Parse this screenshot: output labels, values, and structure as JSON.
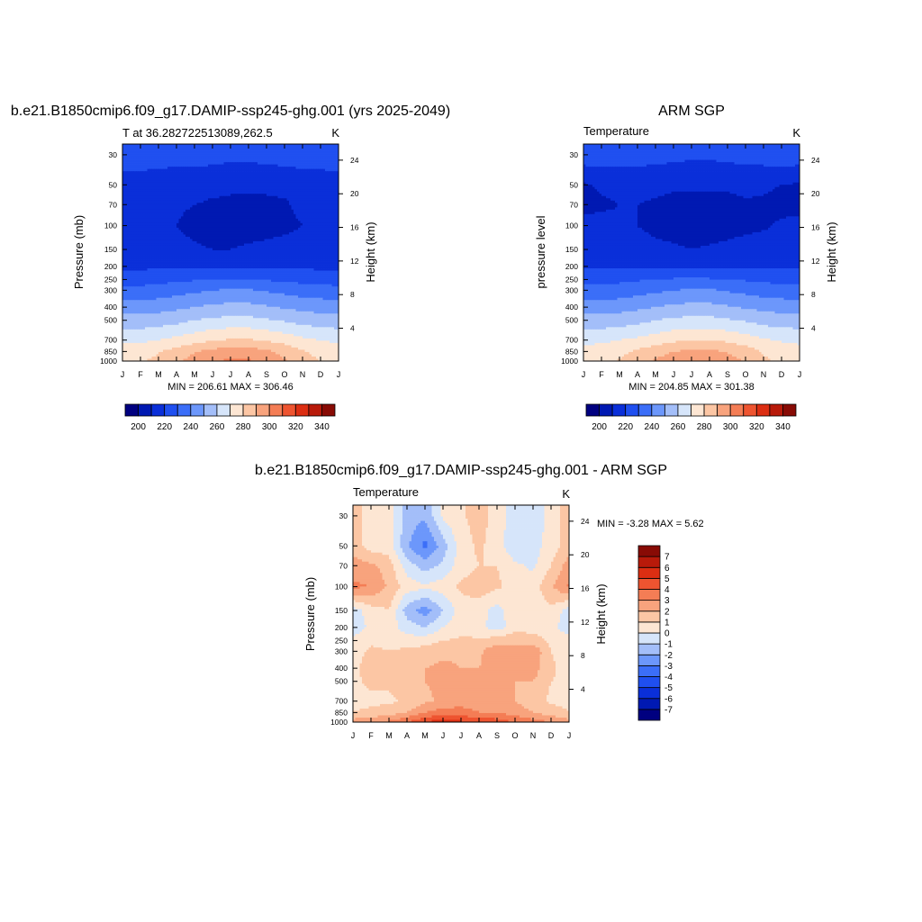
{
  "chart_data": [
    {
      "type": "heatmap",
      "title": "b.e21.B1850cmip6.f09_g17.DAMIP-ssp245-ghg.001 (yrs 2025-2049)",
      "left_label": "T at 36.282722513089,262.5",
      "right_label": "K",
      "ylabel": "Pressure (mb)",
      "ylabel_right": "Height (km)",
      "x_ticks": [
        "J",
        "F",
        "M",
        "A",
        "M",
        "J",
        "J",
        "A",
        "S",
        "O",
        "N",
        "D",
        "J"
      ],
      "y_ticks": [
        30,
        50,
        70,
        100,
        150,
        200,
        250,
        300,
        400,
        500,
        700,
        850,
        1000
      ],
      "y_ticks_right": [
        4,
        8,
        12,
        16,
        20,
        24
      ],
      "y_scale": "log",
      "ylim": [
        1000,
        25
      ],
      "minmax_text": "MIN = 206.61 MAX = 306.46",
      "colorbar": {
        "orientation": "horizontal",
        "ticks": [
          200,
          220,
          240,
          260,
          280,
          300,
          320,
          340
        ],
        "levels": [
          190,
          200,
          210,
          220,
          230,
          240,
          250,
          260,
          270,
          280,
          290,
          300,
          310,
          320,
          330,
          340,
          350
        ],
        "colors": [
          "#000080",
          "#0019b2",
          "#0a2fd9",
          "#1f4ff0",
          "#3b6ef8",
          "#6c97fb",
          "#a3bef9",
          "#d6e5fa",
          "#fde6d3",
          "#fcc6a4",
          "#f8a37d",
          "#f47d55",
          "#ee5430",
          "#dc2e12",
          "#b81a0a",
          "#880b05"
        ]
      },
      "series": [
        {
          "pressure": 30,
          "values": [
            226,
            226,
            225,
            225,
            225,
            224,
            223,
            223,
            224,
            225,
            226,
            226,
            226
          ]
        },
        {
          "pressure": 50,
          "values": [
            215,
            215,
            214,
            213,
            213,
            212,
            211,
            211,
            211,
            212,
            213,
            214,
            215
          ]
        },
        {
          "pressure": 70,
          "values": [
            213,
            213,
            212,
            211,
            210,
            209,
            209,
            209,
            209,
            209,
            212,
            213,
            213
          ]
        },
        {
          "pressure": 100,
          "values": [
            212,
            212,
            211,
            210,
            208,
            207,
            207,
            207,
            207,
            208,
            210,
            211,
            212
          ]
        },
        {
          "pressure": 150,
          "values": [
            214,
            214,
            213,
            212,
            211,
            210,
            210,
            211,
            212,
            213,
            213,
            214,
            214
          ]
        },
        {
          "pressure": 200,
          "values": [
            218,
            218,
            218,
            218,
            218,
            218,
            218,
            218,
            218,
            218,
            218,
            218,
            218
          ]
        },
        {
          "pressure": 250,
          "values": [
            226,
            226,
            227,
            228,
            229,
            230,
            230,
            230,
            229,
            228,
            227,
            226,
            226
          ]
        },
        {
          "pressure": 300,
          "values": [
            233,
            233,
            234,
            236,
            238,
            240,
            241,
            241,
            239,
            237,
            235,
            234,
            233
          ]
        },
        {
          "pressure": 400,
          "values": [
            245,
            245,
            246,
            248,
            250,
            252,
            253,
            253,
            251,
            249,
            247,
            246,
            245
          ]
        },
        {
          "pressure": 500,
          "values": [
            254,
            254,
            255,
            257,
            260,
            262,
            263,
            263,
            261,
            259,
            256,
            255,
            254
          ]
        },
        {
          "pressure": 700,
          "values": [
            268,
            268,
            270,
            273,
            276,
            279,
            281,
            281,
            279,
            276,
            272,
            270,
            268
          ]
        },
        {
          "pressure": 850,
          "values": [
            275,
            276,
            279,
            284,
            289,
            293,
            295,
            295,
            292,
            287,
            281,
            277,
            275
          ]
        },
        {
          "pressure": 1000,
          "values": [
            278,
            279,
            283,
            288,
            294,
            299,
            302,
            301,
            297,
            291,
            284,
            280,
            278
          ]
        }
      ]
    },
    {
      "type": "heatmap",
      "title": "ARM SGP",
      "left_label": "Temperature",
      "right_label": "K",
      "ylabel": "pressure level",
      "ylabel_right": "Height (km)",
      "x_ticks": [
        "J",
        "F",
        "M",
        "A",
        "M",
        "J",
        "J",
        "A",
        "S",
        "O",
        "N",
        "D",
        "J"
      ],
      "y_ticks": [
        30,
        50,
        70,
        100,
        150,
        200,
        250,
        300,
        400,
        500,
        700,
        850,
        1000
      ],
      "y_ticks_right": [
        4,
        8,
        12,
        16,
        20,
        24
      ],
      "y_scale": "log",
      "ylim": [
        1000,
        25
      ],
      "minmax_text": "MIN = 204.85 MAX = 301.38",
      "colorbar": {
        "orientation": "horizontal",
        "ticks": [
          200,
          220,
          240,
          260,
          280,
          300,
          320,
          340
        ],
        "levels": [
          190,
          200,
          210,
          220,
          230,
          240,
          250,
          260,
          270,
          280,
          290,
          300,
          310,
          320,
          330,
          340,
          350
        ],
        "colors": [
          "#000080",
          "#0019b2",
          "#0a2fd9",
          "#1f4ff0",
          "#3b6ef8",
          "#6c97fb",
          "#a3bef9",
          "#d6e5fa",
          "#fde6d3",
          "#fcc6a4",
          "#f8a37d",
          "#f47d55",
          "#ee5430",
          "#dc2e12",
          "#b81a0a",
          "#880b05"
        ]
      },
      "series": [
        {
          "pressure": 30,
          "values": [
            226,
            226,
            225,
            225,
            224,
            223,
            222,
            222,
            223,
            224,
            225,
            226,
            226
          ]
        },
        {
          "pressure": 50,
          "values": [
            209,
            211,
            212,
            212,
            212,
            211,
            211,
            211,
            211,
            212,
            211,
            210,
            209
          ]
        },
        {
          "pressure": 70,
          "values": [
            208,
            209,
            210,
            210,
            209,
            208,
            208,
            208,
            208,
            209,
            209,
            208,
            208
          ]
        },
        {
          "pressure": 100,
          "values": [
            212,
            212,
            211,
            210,
            208,
            207,
            206,
            206,
            207,
            208,
            209,
            211,
            212
          ]
        },
        {
          "pressure": 150,
          "values": [
            214,
            214,
            214,
            213,
            212,
            211,
            210,
            211,
            212,
            213,
            214,
            214,
            214
          ]
        },
        {
          "pressure": 200,
          "values": [
            218,
            218,
            218,
            218,
            218,
            218,
            218,
            218,
            218,
            218,
            218,
            218,
            218
          ]
        },
        {
          "pressure": 250,
          "values": [
            227,
            227,
            228,
            229,
            230,
            231,
            231,
            231,
            230,
            229,
            228,
            227,
            227
          ]
        },
        {
          "pressure": 300,
          "values": [
            233,
            233,
            234,
            236,
            238,
            240,
            241,
            241,
            239,
            237,
            235,
            234,
            233
          ]
        },
        {
          "pressure": 400,
          "values": [
            245,
            245,
            246,
            248,
            250,
            252,
            253,
            253,
            251,
            249,
            247,
            246,
            245
          ]
        },
        {
          "pressure": 500,
          "values": [
            254,
            254,
            255,
            257,
            260,
            262,
            263,
            263,
            261,
            259,
            256,
            255,
            254
          ]
        },
        {
          "pressure": 700,
          "values": [
            268,
            268,
            270,
            272,
            275,
            278,
            280,
            280,
            278,
            275,
            271,
            269,
            268
          ]
        },
        {
          "pressure": 850,
          "values": [
            273,
            274,
            277,
            282,
            286,
            290,
            292,
            292,
            289,
            285,
            279,
            275,
            273
          ]
        },
        {
          "pressure": 1000,
          "values": [
            276,
            277,
            281,
            286,
            291,
            296,
            299,
            298,
            295,
            289,
            282,
            278,
            276
          ]
        }
      ]
    },
    {
      "type": "heatmap",
      "title": "b.e21.B1850cmip6.f09_g17.DAMIP-ssp245-ghg.001 - ARM SGP",
      "left_label": "Temperature",
      "right_label": "K",
      "ylabel": "Pressure (mb)",
      "ylabel_right": "Height (km)",
      "x_ticks": [
        "J",
        "F",
        "M",
        "A",
        "M",
        "J",
        "J",
        "A",
        "S",
        "O",
        "N",
        "D",
        "J"
      ],
      "y_ticks": [
        30,
        50,
        70,
        100,
        150,
        200,
        250,
        300,
        400,
        500,
        700,
        850,
        1000
      ],
      "y_ticks_right": [
        4,
        8,
        12,
        16,
        20,
        24
      ],
      "y_scale": "log",
      "ylim": [
        1000,
        25
      ],
      "minmax_text": "MIN =  -3.28 MAX =   5.62",
      "colorbar": {
        "orientation": "vertical",
        "ticks": [
          -7,
          -6,
          -5,
          -4,
          -3,
          -2,
          -1,
          0,
          1,
          2,
          3,
          4,
          5,
          6,
          7
        ],
        "levels": [
          -8,
          -7,
          -6,
          -5,
          -4,
          -3,
          -2,
          -1,
          0,
          1,
          2,
          3,
          4,
          5,
          6,
          7,
          8
        ],
        "colors": [
          "#000080",
          "#0019b2",
          "#0a2fd9",
          "#1f4ff0",
          "#3b6ef8",
          "#6c97fb",
          "#a3bef9",
          "#d6e5fa",
          "#fde6d3",
          "#fcc6a4",
          "#f8a37d",
          "#f47d55",
          "#ee5430",
          "#dc2e12",
          "#b81a0a",
          "#880b05"
        ]
      },
      "series": [
        {
          "pressure": 30,
          "values": [
            1.5,
            0.5,
            0.5,
            -1.5,
            -1.8,
            0.2,
            0.8,
            1.5,
            0.5,
            -0.5,
            -0.8,
            0.5,
            1.5
          ]
        },
        {
          "pressure": 50,
          "values": [
            1.5,
            0.5,
            0.5,
            -1.8,
            -3.3,
            -1.5,
            0.5,
            1.2,
            0.5,
            -0.8,
            -0.5,
            0.5,
            1.5
          ]
        },
        {
          "pressure": 70,
          "values": [
            2.5,
            2.2,
            1.5,
            -0.5,
            -1.5,
            -0.8,
            0.5,
            1.0,
            1.0,
            0.2,
            -0.2,
            1.0,
            2.5
          ]
        },
        {
          "pressure": 100,
          "values": [
            3.2,
            3.0,
            1.8,
            0.5,
            0.2,
            0.5,
            1.2,
            1.5,
            1.2,
            0.5,
            0.5,
            1.8,
            3.2
          ]
        },
        {
          "pressure": 150,
          "values": [
            -0.5,
            0.5,
            1.0,
            -1.5,
            -2.5,
            -1.0,
            0.5,
            0.5,
            -0.5,
            0.8,
            0.5,
            0.8,
            -0.5
          ]
        },
        {
          "pressure": 200,
          "values": [
            -0.8,
            0.3,
            0.5,
            -0.5,
            -1.0,
            0.0,
            0.5,
            0.3,
            -0.5,
            0.5,
            0.5,
            0.5,
            -0.8
          ]
        },
        {
          "pressure": 250,
          "values": [
            0.5,
            0.8,
            0.8,
            0.5,
            0.5,
            1.0,
            1.2,
            1.2,
            1.5,
            2.0,
            1.5,
            0.8,
            0.5
          ]
        },
        {
          "pressure": 300,
          "values": [
            0.5,
            1.2,
            1.0,
            1.2,
            1.5,
            1.8,
            1.8,
            1.8,
            2.8,
            2.0,
            2.8,
            1.0,
            0.5
          ]
        },
        {
          "pressure": 400,
          "values": [
            0.5,
            1.8,
            1.5,
            1.5,
            2.0,
            2.2,
            2.0,
            2.0,
            2.5,
            2.0,
            2.5,
            1.2,
            0.5
          ]
        },
        {
          "pressure": 500,
          "values": [
            0.8,
            1.2,
            1.2,
            1.5,
            2.0,
            2.2,
            2.0,
            2.2,
            2.2,
            2.0,
            2.0,
            1.0,
            0.8
          ]
        },
        {
          "pressure": 700,
          "values": [
            0.8,
            0.8,
            0.8,
            1.2,
            1.8,
            2.2,
            2.5,
            2.5,
            2.2,
            2.0,
            1.5,
            0.8,
            0.8
          ]
        },
        {
          "pressure": 850,
          "values": [
            1.0,
            1.2,
            1.5,
            2.0,
            3.0,
            3.5,
            3.5,
            3.0,
            3.0,
            2.5,
            2.0,
            1.5,
            1.0
          ]
        },
        {
          "pressure": 1000,
          "values": [
            2.5,
            2.8,
            3.2,
            4.0,
            5.0,
            5.6,
            5.2,
            4.8,
            4.5,
            4.0,
            3.5,
            3.0,
            2.5
          ]
        }
      ]
    }
  ]
}
